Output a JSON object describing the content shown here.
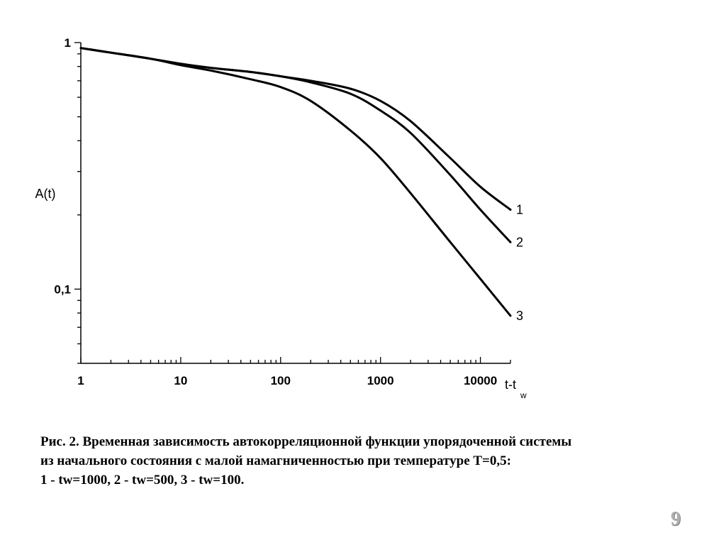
{
  "chart_data": {
    "type": "line",
    "xscale": "log",
    "yscale": "log",
    "xlim": [
      1,
      20000
    ],
    "ylim": [
      0.05,
      1
    ],
    "xlabel": "t-t",
    "xlabel_sub": "w",
    "ylabel": "A(t)",
    "x_ticks": [
      1,
      10,
      100,
      1000,
      10000
    ],
    "x_tick_labels": [
      "1",
      "10",
      "100",
      "1000",
      "10000"
    ],
    "y_ticks": [
      0.1,
      1
    ],
    "y_tick_labels": [
      "0,1",
      "1"
    ],
    "grid": false,
    "series": [
      {
        "name": "1",
        "x": [
          1,
          2,
          5,
          10,
          20,
          50,
          100,
          200,
          500,
          1000,
          2000,
          5000,
          10000,
          20000
        ],
        "y": [
          0.95,
          0.91,
          0.86,
          0.82,
          0.79,
          0.76,
          0.73,
          0.7,
          0.65,
          0.58,
          0.48,
          0.34,
          0.26,
          0.21
        ]
      },
      {
        "name": "2",
        "x": [
          1,
          2,
          5,
          10,
          20,
          50,
          100,
          200,
          500,
          1000,
          2000,
          5000,
          10000,
          20000
        ],
        "y": [
          0.95,
          0.91,
          0.86,
          0.82,
          0.79,
          0.76,
          0.73,
          0.69,
          0.62,
          0.53,
          0.43,
          0.29,
          0.21,
          0.155
        ]
      },
      {
        "name": "3",
        "x": [
          1,
          2,
          5,
          10,
          20,
          50,
          100,
          200,
          500,
          1000,
          2000,
          5000,
          10000,
          20000
        ],
        "y": [
          0.95,
          0.91,
          0.86,
          0.81,
          0.77,
          0.71,
          0.66,
          0.58,
          0.44,
          0.34,
          0.245,
          0.155,
          0.11,
          0.078
        ]
      }
    ]
  },
  "caption": {
    "line1": "Рис. 2. Временная зависимость автокорреляционной функции упорядоченной системы",
    "line2": "из начального состояния с малой намагниченностью при температуре Т=0,5:",
    "line3": "1 -  tw=1000, 2 - tw=500, 3 - tw=100."
  },
  "page_number": "9"
}
